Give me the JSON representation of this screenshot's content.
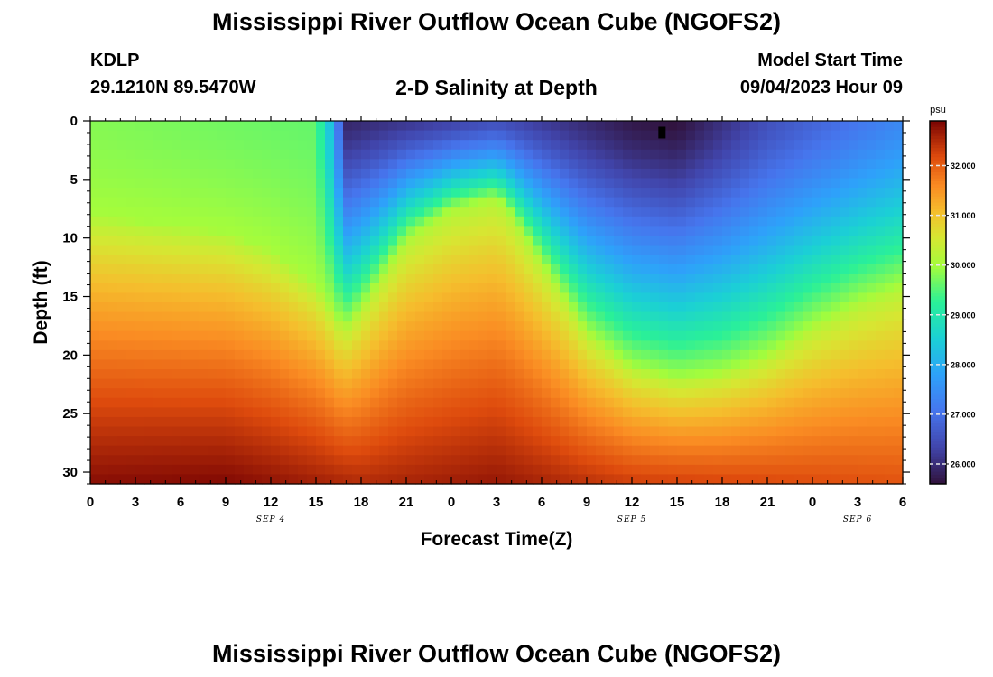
{
  "header": {
    "title_top": "Mississippi River Outflow Ocean Cube (NGOFS2)",
    "station_id": "KDLP",
    "station_coords": "29.1210N  89.5470W",
    "plot_title": "2-D Salinity at Depth",
    "model_start_label": "Model Start Time",
    "model_start_value": "09/04/2023 Hour 09",
    "title_bottom": "Mississippi River Outflow Ocean Cube (NGOFS2)"
  },
  "chart_data": {
    "type": "heatmap",
    "title": "2-D Salinity at Depth",
    "xlabel": "Forecast Time(Z)",
    "ylabel": "Depth (ft)",
    "x_range_hours": [
      0,
      54
    ],
    "x_ticks": [
      "0",
      "3",
      "6",
      "9",
      "12",
      "15",
      "18",
      "21",
      "0",
      "3",
      "6",
      "9",
      "12",
      "15",
      "18",
      "21",
      "0",
      "3",
      "6"
    ],
    "date_labels": [
      {
        "text": "SEP 4",
        "tick_index": 4
      },
      {
        "text": "SEP 5",
        "tick_index": 12
      },
      {
        "text": "SEP 6",
        "tick_index": 17
      }
    ],
    "y_range": [
      0,
      31
    ],
    "y_ticks": [
      0,
      5,
      10,
      15,
      20,
      25,
      30
    ],
    "colorbar": {
      "unit": "psu",
      "min": 25.6,
      "max": 32.9,
      "ticks": [
        "32.000",
        "31.000",
        "30.000",
        "29.000",
        "28.000",
        "27.000",
        "26.000"
      ],
      "tick_values": [
        32,
        31,
        30,
        29,
        28,
        27,
        26
      ]
    },
    "isohaline_depth_ft_30psu": {
      "hours": [
        0,
        3,
        6,
        9,
        12,
        15,
        16.5,
        17,
        18,
        21,
        24,
        27,
        28,
        30,
        33,
        36,
        39,
        42,
        45,
        48,
        51,
        54
      ],
      "depth": [
        8,
        8.5,
        9,
        9.5,
        11,
        14,
        17,
        17.5,
        16,
        10,
        7.5,
        6.5,
        8,
        12,
        18,
        21,
        22,
        21.5,
        20,
        17.5,
        15.5,
        14
      ]
    },
    "surface_salinity_psu": {
      "hours": [
        0,
        15,
        16,
        17,
        24,
        27,
        30,
        36,
        39,
        45,
        54
      ],
      "values": [
        29.8,
        29.6,
        28.2,
        25.9,
        26.3,
        26.5,
        26.2,
        25.7,
        25.6,
        26.5,
        27.4
      ]
    },
    "bottom_salinity_psu": {
      "hours": [
        0,
        9,
        13,
        18,
        27,
        36,
        45,
        54
      ],
      "values": [
        32.8,
        32.85,
        32.7,
        32.5,
        32.7,
        32.3,
        32.2,
        32.1
      ]
    }
  }
}
